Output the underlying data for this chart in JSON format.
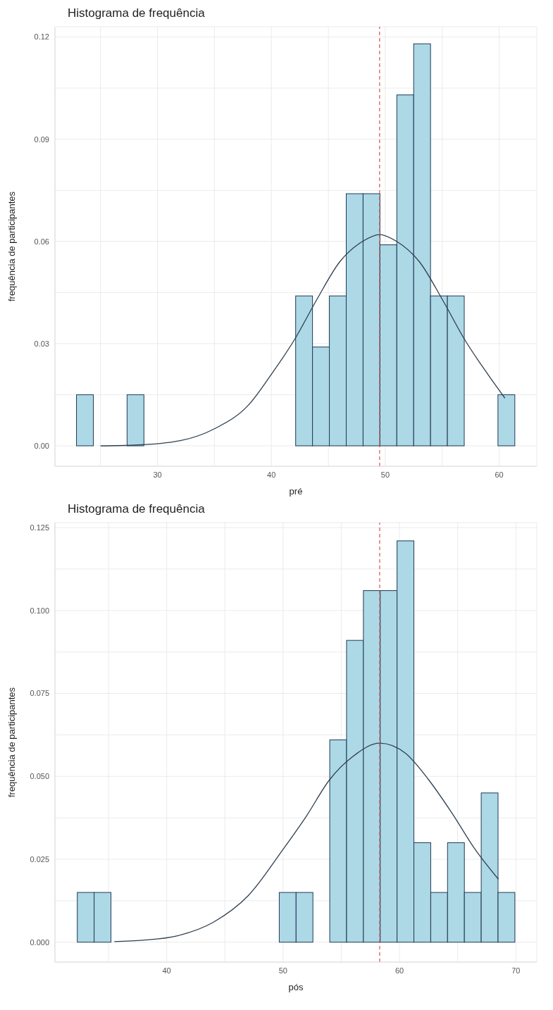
{
  "chart_data": [
    {
      "type": "histogram",
      "title": "Histograma de frequência",
      "xlabel": "pré",
      "ylabel": "frequência de participantes",
      "bins": [
        22.9,
        24.38,
        25.86,
        27.34,
        28.82,
        30.3,
        31.78,
        33.26,
        34.74,
        36.22,
        37.7,
        39.18,
        40.66,
        42.14,
        43.62,
        45.1,
        46.58,
        48.06,
        49.54,
        51.02,
        52.5,
        53.98,
        55.46,
        56.94,
        58.42,
        59.9,
        61.38
      ],
      "series": [
        {
          "color": "#add8e6",
          "values": [
            0.015,
            0,
            0,
            0.015,
            0,
            0,
            0,
            0,
            0,
            0,
            0,
            0,
            0,
            0.044,
            0.029,
            0.044,
            0.074,
            0.074,
            0.059,
            0.103,
            0.118,
            0.044,
            0.044,
            0,
            0,
            0.015
          ]
        },
        {
          "type": "line",
          "color": "#2f3f4f",
          "x": [
            25,
            28,
            32,
            35,
            38,
            40,
            42,
            44,
            46,
            48,
            49.5,
            51,
            53,
            55,
            57,
            59,
            60.5
          ],
          "values": [
            0,
            0.0002,
            0.0015,
            0.005,
            0.012,
            0.021,
            0.031,
            0.043,
            0.054,
            0.06,
            0.062,
            0.06,
            0.054,
            0.043,
            0.031,
            0.021,
            0.014
          ]
        }
      ],
      "xlim": [
        21,
        63.3
      ],
      "ylim": [
        -0.006,
        0.123
      ],
      "xticks": [
        {
          "value": 25,
          "label": null
        },
        30,
        {
          "value": 35,
          "label": null
        },
        40,
        {
          "value": 45,
          "label": null
        },
        50,
        {
          "value": 55,
          "label": null
        },
        60
      ],
      "yticks": [
        {
          "value": 0,
          "label": "0.00"
        },
        {
          "value": 0.015,
          "label": null
        },
        0.03,
        {
          "value": 0.045,
          "label": null
        },
        0.06,
        {
          "value": 0.075,
          "label": null
        },
        0.09,
        {
          "value": 0.105,
          "label": null
        },
        0.12
      ],
      "grid": true,
      "ref_lines": [
        {
          "axis": "x",
          "value": 49.5,
          "color": "#d9534f",
          "line_style": "dashed"
        }
      ]
    },
    {
      "type": "histogram",
      "title": "Histograma de frequência",
      "xlabel": "pós",
      "ylabel": "frequência de participantes",
      "bins": [
        32.32,
        33.766,
        35.212,
        36.658,
        38.104,
        39.55,
        40.996,
        42.442,
        43.888,
        45.334,
        46.78,
        48.226,
        49.672,
        51.118,
        52.564,
        54.01,
        55.456,
        56.902,
        58.348,
        59.794,
        61.24,
        62.686,
        64.132,
        65.578,
        67.024,
        68.47,
        69.916
      ],
      "series": [
        {
          "color": "#add8e6",
          "values": [
            0.015,
            0.015,
            0,
            0,
            0,
            0,
            0,
            0,
            0,
            0,
            0,
            0,
            0.015,
            0.015,
            0,
            0.061,
            0.091,
            0.106,
            0.106,
            0.121,
            0.03,
            0.015,
            0.03,
            0.015,
            0.045,
            0.015
          ]
        },
        {
          "type": "line",
          "color": "#2f3f4f",
          "x": [
            35.5,
            38,
            41,
            44,
            47,
            50,
            52,
            54,
            56,
            58.3,
            60.5,
            62.5,
            64.5,
            66.5,
            68.5
          ],
          "values": [
            0.0002,
            0.0006,
            0.002,
            0.006,
            0.014,
            0.028,
            0.038,
            0.049,
            0.056,
            0.06,
            0.057,
            0.049,
            0.039,
            0.028,
            0.019
          ]
        }
      ],
      "xlim": [
        30.4,
        71.8
      ],
      "ylim": [
        -0.006,
        0.1265
      ],
      "xticks": [
        {
          "value": 35,
          "label": null
        },
        40,
        {
          "value": 45,
          "label": null
        },
        50,
        {
          "value": 55,
          "label": null
        },
        60,
        {
          "value": 65,
          "label": null
        },
        70
      ],
      "yticks": [
        {
          "value": 0,
          "label": "0.000"
        },
        {
          "value": 0.0125,
          "label": null
        },
        {
          "value": 0.025,
          "label": "0.025"
        },
        {
          "value": 0.0375,
          "label": null
        },
        {
          "value": 0.05,
          "label": "0.050"
        },
        {
          "value": 0.0625,
          "label": null
        },
        {
          "value": 0.075,
          "label": "0.075"
        },
        {
          "value": 0.0875,
          "label": null
        },
        {
          "value": 0.1,
          "label": "0.100"
        },
        {
          "value": 0.1125,
          "label": null
        },
        {
          "value": 0.125,
          "label": "0.125"
        }
      ],
      "grid": true,
      "ref_lines": [
        {
          "axis": "x",
          "value": 58.3,
          "color": "#d9534f",
          "line_style": "dashed"
        }
      ]
    }
  ]
}
